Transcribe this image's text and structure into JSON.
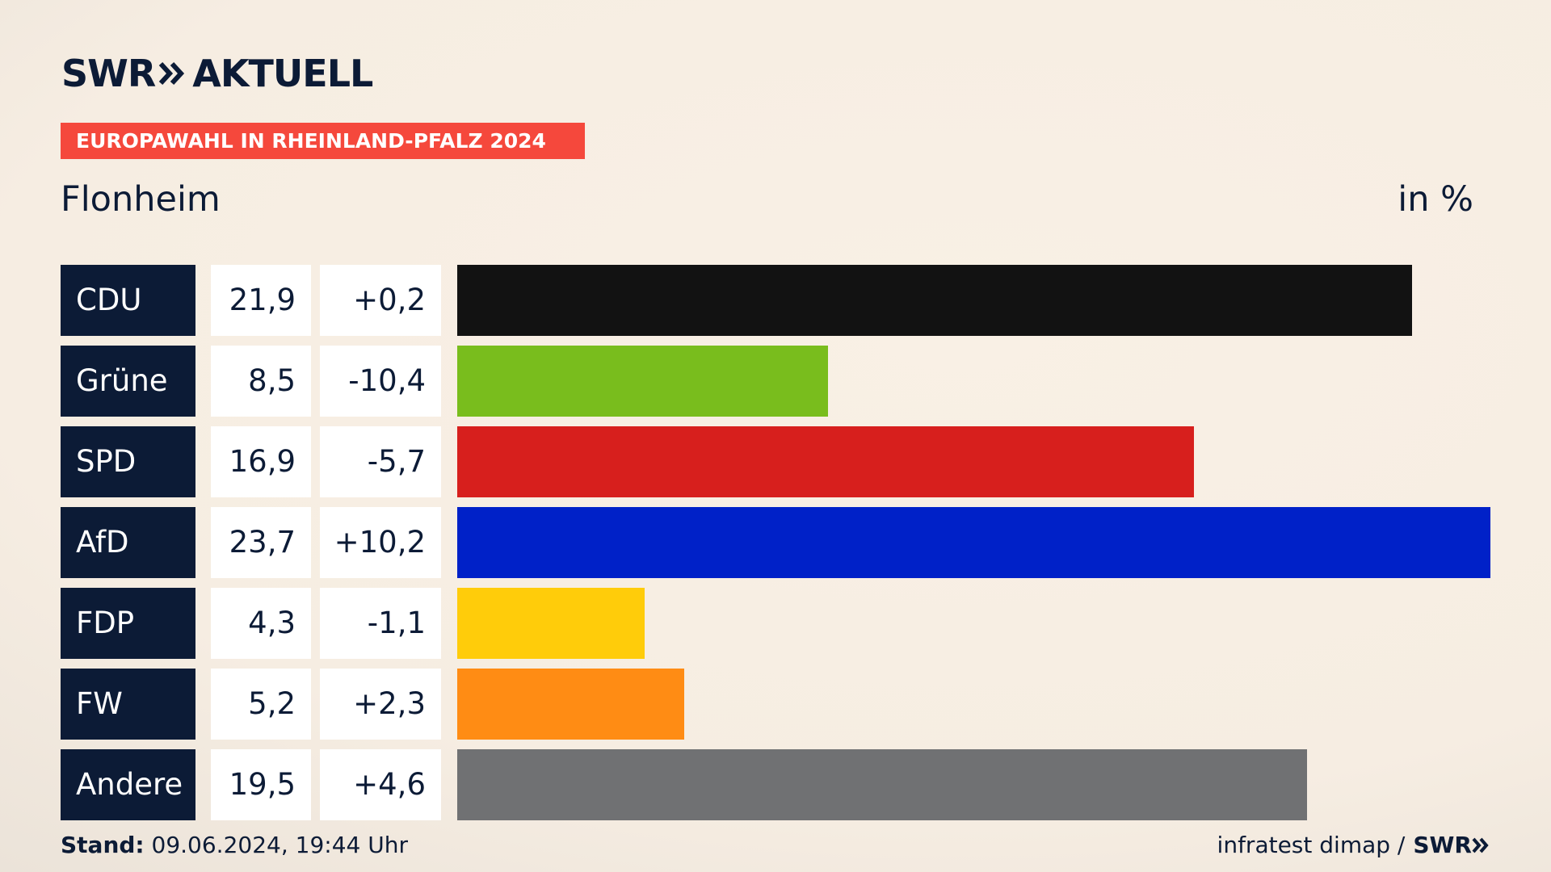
{
  "header": {
    "logo_swr": "SWR",
    "logo_aktuell": "AKTUELL",
    "badge": "EUROPAWAHL IN RHEINLAND-PFALZ 2024",
    "region": "Flonheim",
    "unit": "in %"
  },
  "colors": {
    "navy": "#0c1b36",
    "badge": "#f5483c"
  },
  "chart_data": {
    "type": "bar",
    "orientation": "horizontal",
    "categories": [
      "CDU",
      "Grüne",
      "SPD",
      "AfD",
      "FDP",
      "FW",
      "Andere"
    ],
    "values": [
      21.9,
      8.5,
      16.9,
      23.7,
      4.3,
      5.2,
      19.5
    ],
    "value_labels": [
      "21,9",
      "8,5",
      "16,9",
      "23,7",
      "4,3",
      "5,2",
      "19,5"
    ],
    "change_labels": [
      "+0,2",
      "-10,4",
      "-5,7",
      "+10,2",
      "-1,1",
      "+2,3",
      "+4,6"
    ],
    "changes": [
      0.2,
      -10.4,
      -5.7,
      10.2,
      -1.1,
      2.3,
      4.6
    ],
    "colors": [
      "#121212",
      "#79bd1d",
      "#d71f1d",
      "#0021c8",
      "#ffcc0a",
      "#ff8c14",
      "#707173"
    ],
    "xlim": [
      0,
      23.7
    ],
    "grid": false
  },
  "footer": {
    "stand_label": "Stand:",
    "stand_value": " 09.06.2024, 19:44 Uhr",
    "source": "infratest dimap /",
    "source_logo": "SWR"
  }
}
